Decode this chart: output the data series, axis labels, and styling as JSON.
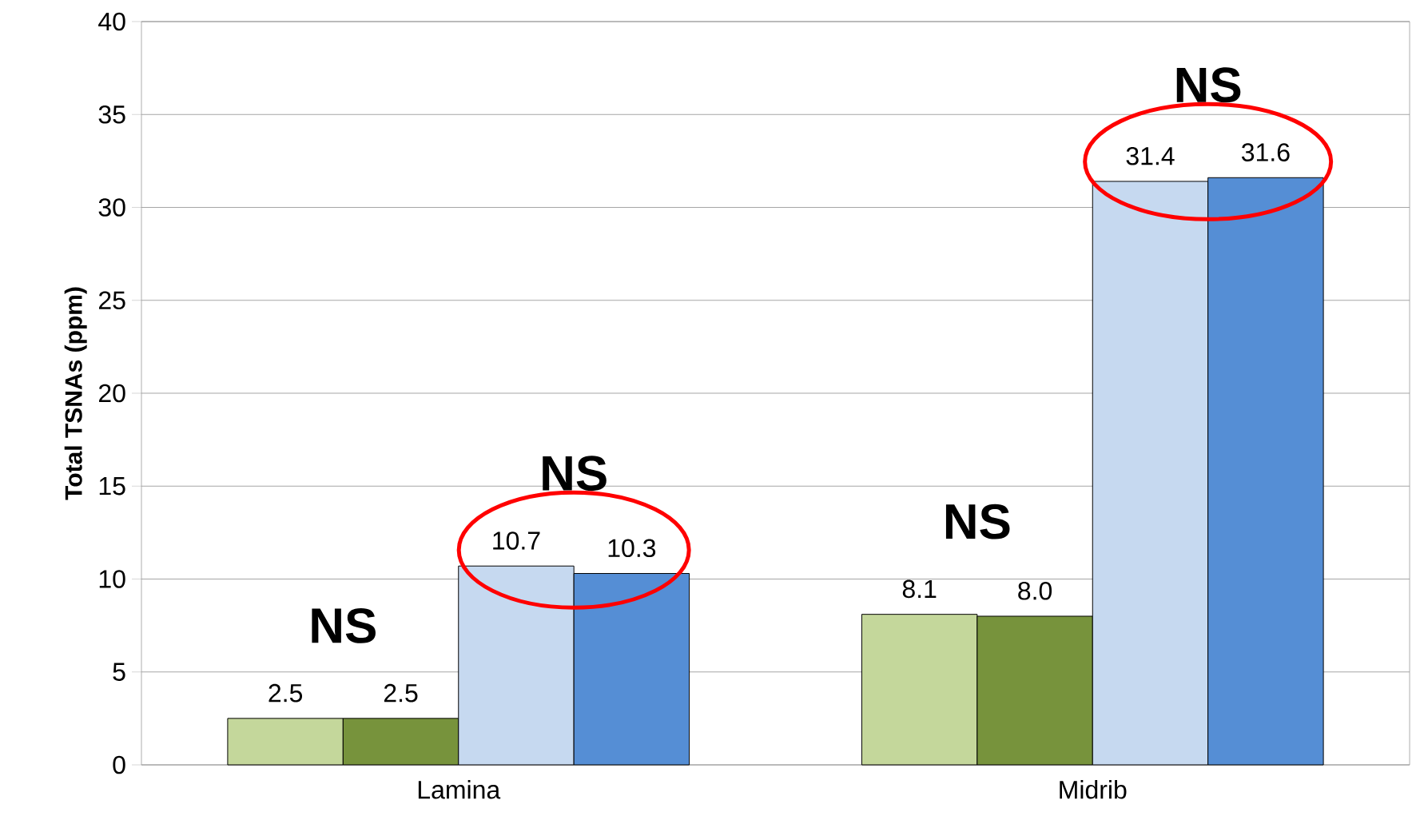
{
  "chart_data": {
    "type": "bar",
    "ylabel": "Total TSNAs (ppm)",
    "categories": [
      "Lamina",
      "Midrib"
    ],
    "series": [
      {
        "color": "#c4d79b",
        "values": [
          2.5,
          8.1
        ],
        "value_labels": [
          "2.5",
          "8.1"
        ]
      },
      {
        "color": "#77933c",
        "values": [
          2.5,
          8.0
        ],
        "value_labels": [
          "2.5",
          "8.0"
        ]
      },
      {
        "color": "#c6d9f0",
        "values": [
          10.7,
          31.4
        ],
        "value_labels": [
          "10.7",
          "31.4"
        ]
      },
      {
        "color": "#558ed5",
        "values": [
          10.3,
          31.6
        ],
        "value_labels": [
          "10.3",
          "31.6"
        ]
      }
    ],
    "ylim": [
      0,
      40
    ],
    "yticks": [
      0,
      5,
      10,
      15,
      20,
      25,
      30,
      35,
      40
    ],
    "grid": "y",
    "annotations": [
      "NS",
      "NS",
      "NS",
      "NS"
    ]
  }
}
